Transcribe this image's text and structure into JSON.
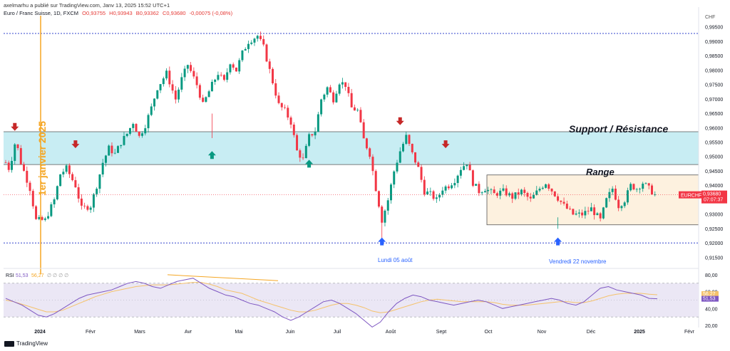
{
  "header": {
    "published_by": "axelmarhu a publié sur TradingView.com, Janv 13, 2025 15:52 UTC+1"
  },
  "ohlc": {
    "symbol_line": "Euro / Franc Suisse, 1D, FXCM",
    "open": "O0,93755",
    "high": "H0,93943",
    "low": "B0,93362",
    "close": "C0,93680",
    "change": "-0,00075 (-0,08%)"
  },
  "footer": {
    "brand": "TradingView"
  },
  "colors": {
    "up": "#089981",
    "down": "#f23645",
    "support_zone": "#c8edf3",
    "range_zone": "#fdf1df",
    "rsi_band": "#ebe7f5",
    "rsi_line": "#7e57c2",
    "rsi_ma": "#f5c26b",
    "vertical_marker": "#f5a623",
    "dotted_levels": "#3344cc"
  },
  "price_axis": {
    "currency": "CHF",
    "ticks": [
      "0,99500",
      "0,99000",
      "0,98500",
      "0,98000",
      "0,97500",
      "0,97000",
      "0,96500",
      "0,96000",
      "0,95500",
      "0,95000",
      "0,94500",
      "0,94000",
      "0,93500",
      "0,93000",
      "0,92500",
      "0,92000",
      "0,91500"
    ],
    "last_symbol": "EURCHF",
    "last_price": "0,93680",
    "countdown": "07:07:37"
  },
  "rsi_panel": {
    "label": "RSI",
    "value1": "51,53",
    "value2": "56,27",
    "placeholders": "∅ ∅ ∅ ∅",
    "ticks": [
      "80,00",
      "60,00",
      "40,00",
      "20,00"
    ],
    "tag_ma": "56,27",
    "tag_rsi": "51,53"
  },
  "annotations": {
    "support_resistance": "Support / Résistance",
    "range": "Range",
    "date_marker": "1er janvier 2025",
    "low_aug": "Lundi 05 août",
    "low_nov": "Vendredi 22 novembre"
  },
  "chart_data": {
    "type": "candlestick",
    "symbol": "EURCHF",
    "timeframe": "1D",
    "x_labels": [
      "2024",
      "Févr",
      "Mars",
      "Avr",
      "Mai",
      "Juin",
      "Juil",
      "Août",
      "Sept",
      "Oct",
      "Nov",
      "Déc",
      "2025",
      "Févr"
    ],
    "ylim": [
      0.9125,
      0.9975
    ],
    "levels": {
      "dotted_top": 0.9928,
      "dotted_bottom": 0.9201,
      "support_zone": [
        0.9473,
        0.9587
      ],
      "range_zone": [
        0.9264,
        0.9437
      ]
    },
    "price_anchors": [
      [
        0.948,
        0.0
      ],
      [
        0.945,
        1.5
      ],
      [
        0.954,
        2.5
      ],
      [
        0.955,
        3.5
      ],
      [
        0.948,
        5
      ],
      [
        0.939,
        8
      ],
      [
        0.928,
        10
      ],
      [
        0.928,
        13
      ],
      [
        0.935,
        16
      ],
      [
        0.944,
        18
      ],
      [
        0.946,
        20
      ],
      [
        0.94,
        23
      ],
      [
        0.932,
        25
      ],
      [
        0.933,
        28
      ],
      [
        0.94,
        30
      ],
      [
        0.948,
        32
      ],
      [
        0.953,
        34
      ],
      [
        0.951,
        36
      ],
      [
        0.955,
        38
      ],
      [
        0.958,
        40
      ],
      [
        0.962,
        42
      ],
      [
        0.957,
        44
      ],
      [
        0.961,
        46
      ],
      [
        0.967,
        48
      ],
      [
        0.974,
        50
      ],
      [
        0.979,
        53
      ],
      [
        0.97,
        56
      ],
      [
        0.977,
        58
      ],
      [
        0.982,
        60
      ],
      [
        0.975,
        63
      ],
      [
        0.968,
        65
      ],
      [
        0.975,
        68
      ],
      [
        0.979,
        70
      ],
      [
        0.976,
        72
      ],
      [
        0.983,
        74
      ],
      [
        0.98,
        76
      ],
      [
        0.986,
        78
      ],
      [
        0.99,
        80
      ],
      [
        0.992,
        83
      ],
      [
        0.988,
        85
      ],
      [
        0.976,
        88
      ],
      [
        0.968,
        90
      ],
      [
        0.966,
        92
      ],
      [
        0.962,
        94
      ],
      [
        0.952,
        96
      ],
      [
        0.949,
        98
      ],
      [
        0.957,
        100
      ],
      [
        0.959,
        102
      ],
      [
        0.97,
        104
      ],
      [
        0.974,
        106
      ],
      [
        0.97,
        108
      ],
      [
        0.976,
        110
      ],
      [
        0.975,
        112
      ],
      [
        0.967,
        114
      ],
      [
        0.966,
        116
      ],
      [
        0.956,
        118
      ],
      [
        0.951,
        120
      ],
      [
        0.939,
        122
      ],
      [
        0.928,
        124
      ],
      [
        0.935,
        126
      ],
      [
        0.945,
        128
      ],
      [
        0.952,
        130
      ],
      [
        0.957,
        132
      ],
      [
        0.951,
        134
      ],
      [
        0.946,
        136
      ],
      [
        0.938,
        138
      ],
      [
        0.937,
        140
      ],
      [
        0.935,
        142
      ],
      [
        0.939,
        144
      ],
      [
        0.94,
        146
      ],
      [
        0.942,
        148
      ],
      [
        0.946,
        150
      ],
      [
        0.948,
        152
      ],
      [
        0.941,
        154
      ],
      [
        0.938,
        156
      ],
      [
        0.939,
        158
      ],
      [
        0.937,
        161
      ],
      [
        0.938,
        164
      ],
      [
        0.936,
        167
      ],
      [
        0.938,
        170
      ],
      [
        0.935,
        173
      ],
      [
        0.939,
        176
      ],
      [
        0.941,
        178
      ],
      [
        0.937,
        181
      ],
      [
        0.933,
        184
      ],
      [
        0.93,
        187
      ],
      [
        0.93,
        190
      ],
      [
        0.932,
        193
      ],
      [
        0.928,
        196
      ],
      [
        0.935,
        198
      ],
      [
        0.939,
        200
      ],
      [
        0.933,
        202
      ],
      [
        0.935,
        204
      ],
      [
        0.94,
        206
      ],
      [
        0.939,
        208
      ],
      [
        0.941,
        210
      ],
      [
        0.939,
        212
      ],
      [
        0.9368,
        214
      ]
    ],
    "arrows_down": [
      [
        0.9595,
        3
      ],
      [
        0.9535,
        23
      ],
      [
        0.9615,
        130
      ],
      [
        0.9535,
        145
      ]
    ],
    "arrows_up": [
      [
        0.9505,
        68
      ],
      [
        0.9475,
        100
      ],
      [
        0.9205,
        124
      ],
      [
        0.9205,
        182
      ]
    ],
    "rsi": {
      "ylim": [
        20,
        85
      ],
      "bands": [
        30,
        70
      ],
      "values": [
        52,
        48,
        44,
        38,
        32,
        30,
        34,
        40,
        46,
        52,
        56,
        58,
        60,
        62,
        66,
        70,
        72,
        70,
        66,
        64,
        68,
        72,
        74,
        76,
        70,
        64,
        60,
        56,
        54,
        50,
        46,
        44,
        40,
        36,
        30,
        26,
        30,
        36,
        42,
        48,
        50,
        46,
        40,
        34,
        26,
        18,
        24,
        36,
        46,
        52,
        56,
        54,
        50,
        48,
        46,
        44,
        46,
        48,
        50,
        48,
        44,
        40,
        42,
        44,
        46,
        48,
        50,
        52,
        50,
        46,
        44,
        48,
        56,
        64,
        66,
        62,
        60,
        58,
        56,
        52,
        51.53
      ],
      "ma_values": [
        50,
        48,
        45,
        42,
        39,
        36,
        36,
        38,
        42,
        46,
        50,
        54,
        57,
        60,
        62,
        64,
        66,
        67,
        68,
        68,
        68,
        69,
        70,
        71,
        71,
        69,
        66,
        62,
        60,
        58,
        54,
        50,
        47,
        44,
        41,
        38,
        36,
        36,
        38,
        41,
        44,
        46,
        46,
        44,
        41,
        37,
        35,
        36,
        39,
        42,
        45,
        48,
        50,
        51,
        50,
        49,
        48,
        48,
        48,
        48,
        47,
        45,
        44,
        44,
        44,
        45,
        46,
        47,
        48,
        48,
        47,
        47,
        49,
        52,
        55,
        57,
        58,
        58,
        58,
        57,
        56.27
      ]
    }
  }
}
